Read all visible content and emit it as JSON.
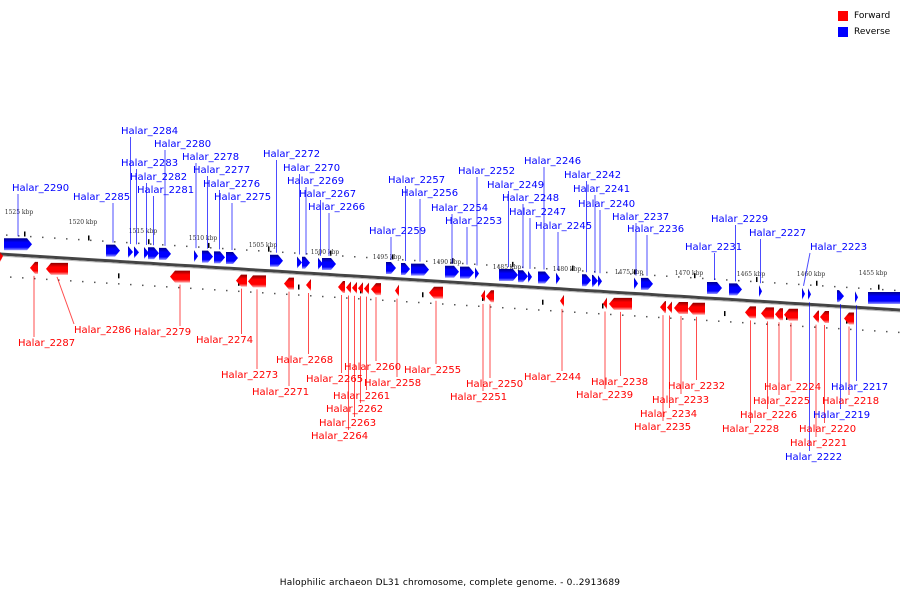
{
  "legend": {
    "items": [
      {
        "label": "Forward",
        "color": "#ff0000"
      },
      {
        "label": "Reverse",
        "color": "#0000ff"
      }
    ]
  },
  "caption": "Halophilic archaeon DL31 chromosome, complete genome. - 0..2913689",
  "colors": {
    "forward": "#ff0000",
    "reverse": "#0000ff",
    "axis": "#808080"
  },
  "scale": {
    "unit": "kbp",
    "ticks": [
      {
        "label": "1525 kbp"
      },
      {
        "label": "1520 kbp"
      },
      {
        "label": "1515 kbp"
      },
      {
        "label": "1510 kbp"
      },
      {
        "label": "1505 kbp"
      },
      {
        "label": "1500 kbp"
      },
      {
        "label": "1495 kbp"
      },
      {
        "label": "1490 kbp"
      },
      {
        "label": "1485 kbp"
      },
      {
        "label": "1480 kbp"
      },
      {
        "label": "1475 kbp"
      },
      {
        "label": "1470 kbp"
      },
      {
        "label": "1465 kbp"
      },
      {
        "label": "1460 kbp"
      },
      {
        "label": "1455 kbp"
      }
    ]
  },
  "genes": {
    "reverse": [
      {
        "name": "Halar_2290"
      },
      {
        "name": "Halar_2285"
      },
      {
        "name": "Halar_2284"
      },
      {
        "name": "Halar_2283"
      },
      {
        "name": "Halar_2282"
      },
      {
        "name": "Halar_2281"
      },
      {
        "name": "Halar_2280"
      },
      {
        "name": "Halar_2278"
      },
      {
        "name": "Halar_2277"
      },
      {
        "name": "Halar_2276"
      },
      {
        "name": "Halar_2275"
      },
      {
        "name": "Halar_2272"
      },
      {
        "name": "Halar_2270"
      },
      {
        "name": "Halar_2269"
      },
      {
        "name": "Halar_2267"
      },
      {
        "name": "Halar_2266"
      },
      {
        "name": "Halar_2259"
      },
      {
        "name": "Halar_2257"
      },
      {
        "name": "Halar_2256"
      },
      {
        "name": "Halar_2254"
      },
      {
        "name": "Halar_2253"
      },
      {
        "name": "Halar_2252"
      },
      {
        "name": "Halar_2249"
      },
      {
        "name": "Halar_2248"
      },
      {
        "name": "Halar_2247"
      },
      {
        "name": "Halar_2246"
      },
      {
        "name": "Halar_2245"
      },
      {
        "name": "Halar_2242"
      },
      {
        "name": "Halar_2241"
      },
      {
        "name": "Halar_2240"
      },
      {
        "name": "Halar_2237"
      },
      {
        "name": "Halar_2236"
      },
      {
        "name": "Halar_2231"
      },
      {
        "name": "Halar_2229"
      },
      {
        "name": "Halar_2227"
      },
      {
        "name": "Halar_2223"
      },
      {
        "name": "Halar_2222"
      },
      {
        "name": "Halar_2219"
      },
      {
        "name": "Halar_2217"
      }
    ],
    "forward": [
      {
        "name": "Halar_2287"
      },
      {
        "name": "Halar_2286"
      },
      {
        "name": "Halar_2279"
      },
      {
        "name": "Halar_2274"
      },
      {
        "name": "Halar_2273"
      },
      {
        "name": "Halar_2271"
      },
      {
        "name": "Halar_2268"
      },
      {
        "name": "Halar_2265"
      },
      {
        "name": "Halar_2264"
      },
      {
        "name": "Halar_2263"
      },
      {
        "name": "Halar_2262"
      },
      {
        "name": "Halar_2261"
      },
      {
        "name": "Halar_2260"
      },
      {
        "name": "Halar_2258"
      },
      {
        "name": "Halar_2255"
      },
      {
        "name": "Halar_2251"
      },
      {
        "name": "Halar_2250"
      },
      {
        "name": "Halar_2244"
      },
      {
        "name": "Halar_2239"
      },
      {
        "name": "Halar_2238"
      },
      {
        "name": "Halar_2235"
      },
      {
        "name": "Halar_2234"
      },
      {
        "name": "Halar_2233"
      },
      {
        "name": "Halar_2232"
      },
      {
        "name": "Halar_2228"
      },
      {
        "name": "Halar_2226"
      },
      {
        "name": "Halar_2225"
      },
      {
        "name": "Halar_2224"
      },
      {
        "name": "Halar_2221"
      },
      {
        "name": "Halar_2220"
      },
      {
        "name": "Halar_2218"
      }
    ]
  }
}
